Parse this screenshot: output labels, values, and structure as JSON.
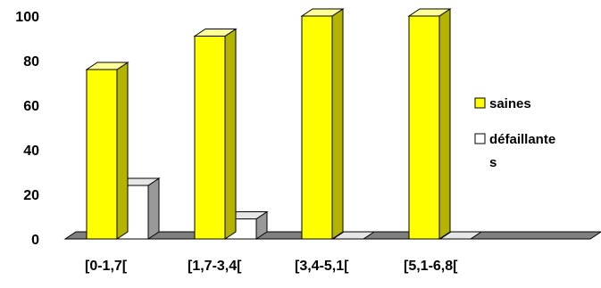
{
  "chart_data": {
    "type": "bar",
    "categories": [
      "[0-1,7[",
      "[1,7-3,4[",
      "[3,4-5,1[",
      "[5,1-6,8["
    ],
    "series": [
      {
        "name": "saines",
        "values": [
          76,
          91,
          100,
          100
        ]
      },
      {
        "name": "défaillante s",
        "values": [
          24,
          9,
          0,
          0
        ]
      }
    ],
    "yticks": [
      0,
      20,
      40,
      60,
      80,
      100
    ],
    "ylim": [
      0,
      100
    ],
    "legend_position": "right",
    "colors": {
      "saines": "#ffff00",
      "saines_top": "#ffff99",
      "saines_side": "#b3b300",
      "defaillantes": "#ffffff",
      "defaillantes_top": "#e6e6e6",
      "defaillantes_side": "#999999",
      "floor": "#808080",
      "outline": "#000000"
    }
  },
  "legend": {
    "item1": "saines",
    "item2_line1": "défaillante",
    "item2_line2": "s"
  }
}
